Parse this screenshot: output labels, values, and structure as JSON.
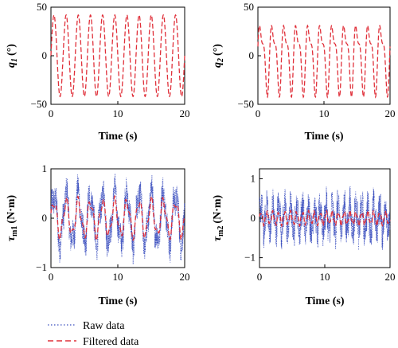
{
  "colors": {
    "raw": "#3b4fbf",
    "filtered": "#e0303a"
  },
  "legend": {
    "raw_label": "Raw data",
    "filtered_label": "Filtered data",
    "placement": "bottom-left"
  },
  "chart_data": [
    {
      "type": "line",
      "xlabel": "Time (s)",
      "ylabel_main": "q",
      "ylabel_sub": "1",
      "ylabel_unit": "(°)",
      "xlim": [
        0,
        20
      ],
      "ylim": [
        -50,
        50
      ],
      "xticks": [
        "0",
        "10",
        "20"
      ],
      "yticks": [
        "50",
        "0",
        "−50"
      ],
      "xtick_values": [
        0,
        10,
        20
      ],
      "ytick_values": [
        50,
        0,
        -50
      ],
      "series": [
        {
          "kind": "filtered",
          "description_amplitude": 42,
          "frequency_hz": 0.55,
          "x_range": [
            0,
            20
          ]
        }
      ]
    },
    {
      "type": "line",
      "xlabel": "Time (s)",
      "ylabel_main": "q",
      "ylabel_sub": "2",
      "ylabel_unit": "(°)",
      "xlim": [
        0,
        20
      ],
      "ylim": [
        -50,
        50
      ],
      "xticks": [
        "0",
        "10",
        "20"
      ],
      "yticks": [
        "50",
        "0",
        "−50"
      ],
      "xtick_values": [
        0,
        10,
        20
      ],
      "ytick_values": [
        50,
        0,
        -50
      ],
      "series": [
        {
          "kind": "filtered",
          "description_amplitude": 44,
          "frequency_hz": 0.55,
          "x_range": [
            0,
            20
          ]
        }
      ]
    },
    {
      "type": "line",
      "xlabel": "Time (s)",
      "ylabel_main": "τ",
      "ylabel_sub": "m1",
      "ylabel_unit": "(N·m)",
      "xlim": [
        0,
        20
      ],
      "ylim": [
        -1,
        1
      ],
      "xticks": [
        "0",
        "10",
        "20"
      ],
      "yticks": [
        "1",
        "0",
        "−1"
      ],
      "xtick_values": [
        0,
        10,
        20
      ],
      "ytick_values": [
        1,
        0,
        -1
      ],
      "series": [
        {
          "kind": "raw",
          "description_amplitude": 0.65,
          "noise": 0.3,
          "frequency_hz": 0.55
        },
        {
          "kind": "filtered",
          "description_amplitude": 0.45,
          "frequency_hz": 0.55
        }
      ]
    },
    {
      "type": "line",
      "xlabel": "Time (s)",
      "ylabel_main": "τ",
      "ylabel_sub": "m2",
      "ylabel_unit": "(N·m)",
      "xlim": [
        0,
        20
      ],
      "ylim": [
        -1.25,
        1.25
      ],
      "xticks": [
        "0",
        "10",
        "20"
      ],
      "yticks": [
        "1",
        "0",
        "−1"
      ],
      "xtick_values": [
        0,
        10,
        20
      ],
      "ytick_values": [
        1,
        0,
        -1
      ],
      "series": [
        {
          "kind": "raw",
          "description_amplitude": 0.45,
          "noise": 0.4,
          "frequency_hz": 1.1
        },
        {
          "kind": "filtered",
          "description_amplitude": 0.2,
          "frequency_hz": 1.1
        }
      ]
    }
  ]
}
